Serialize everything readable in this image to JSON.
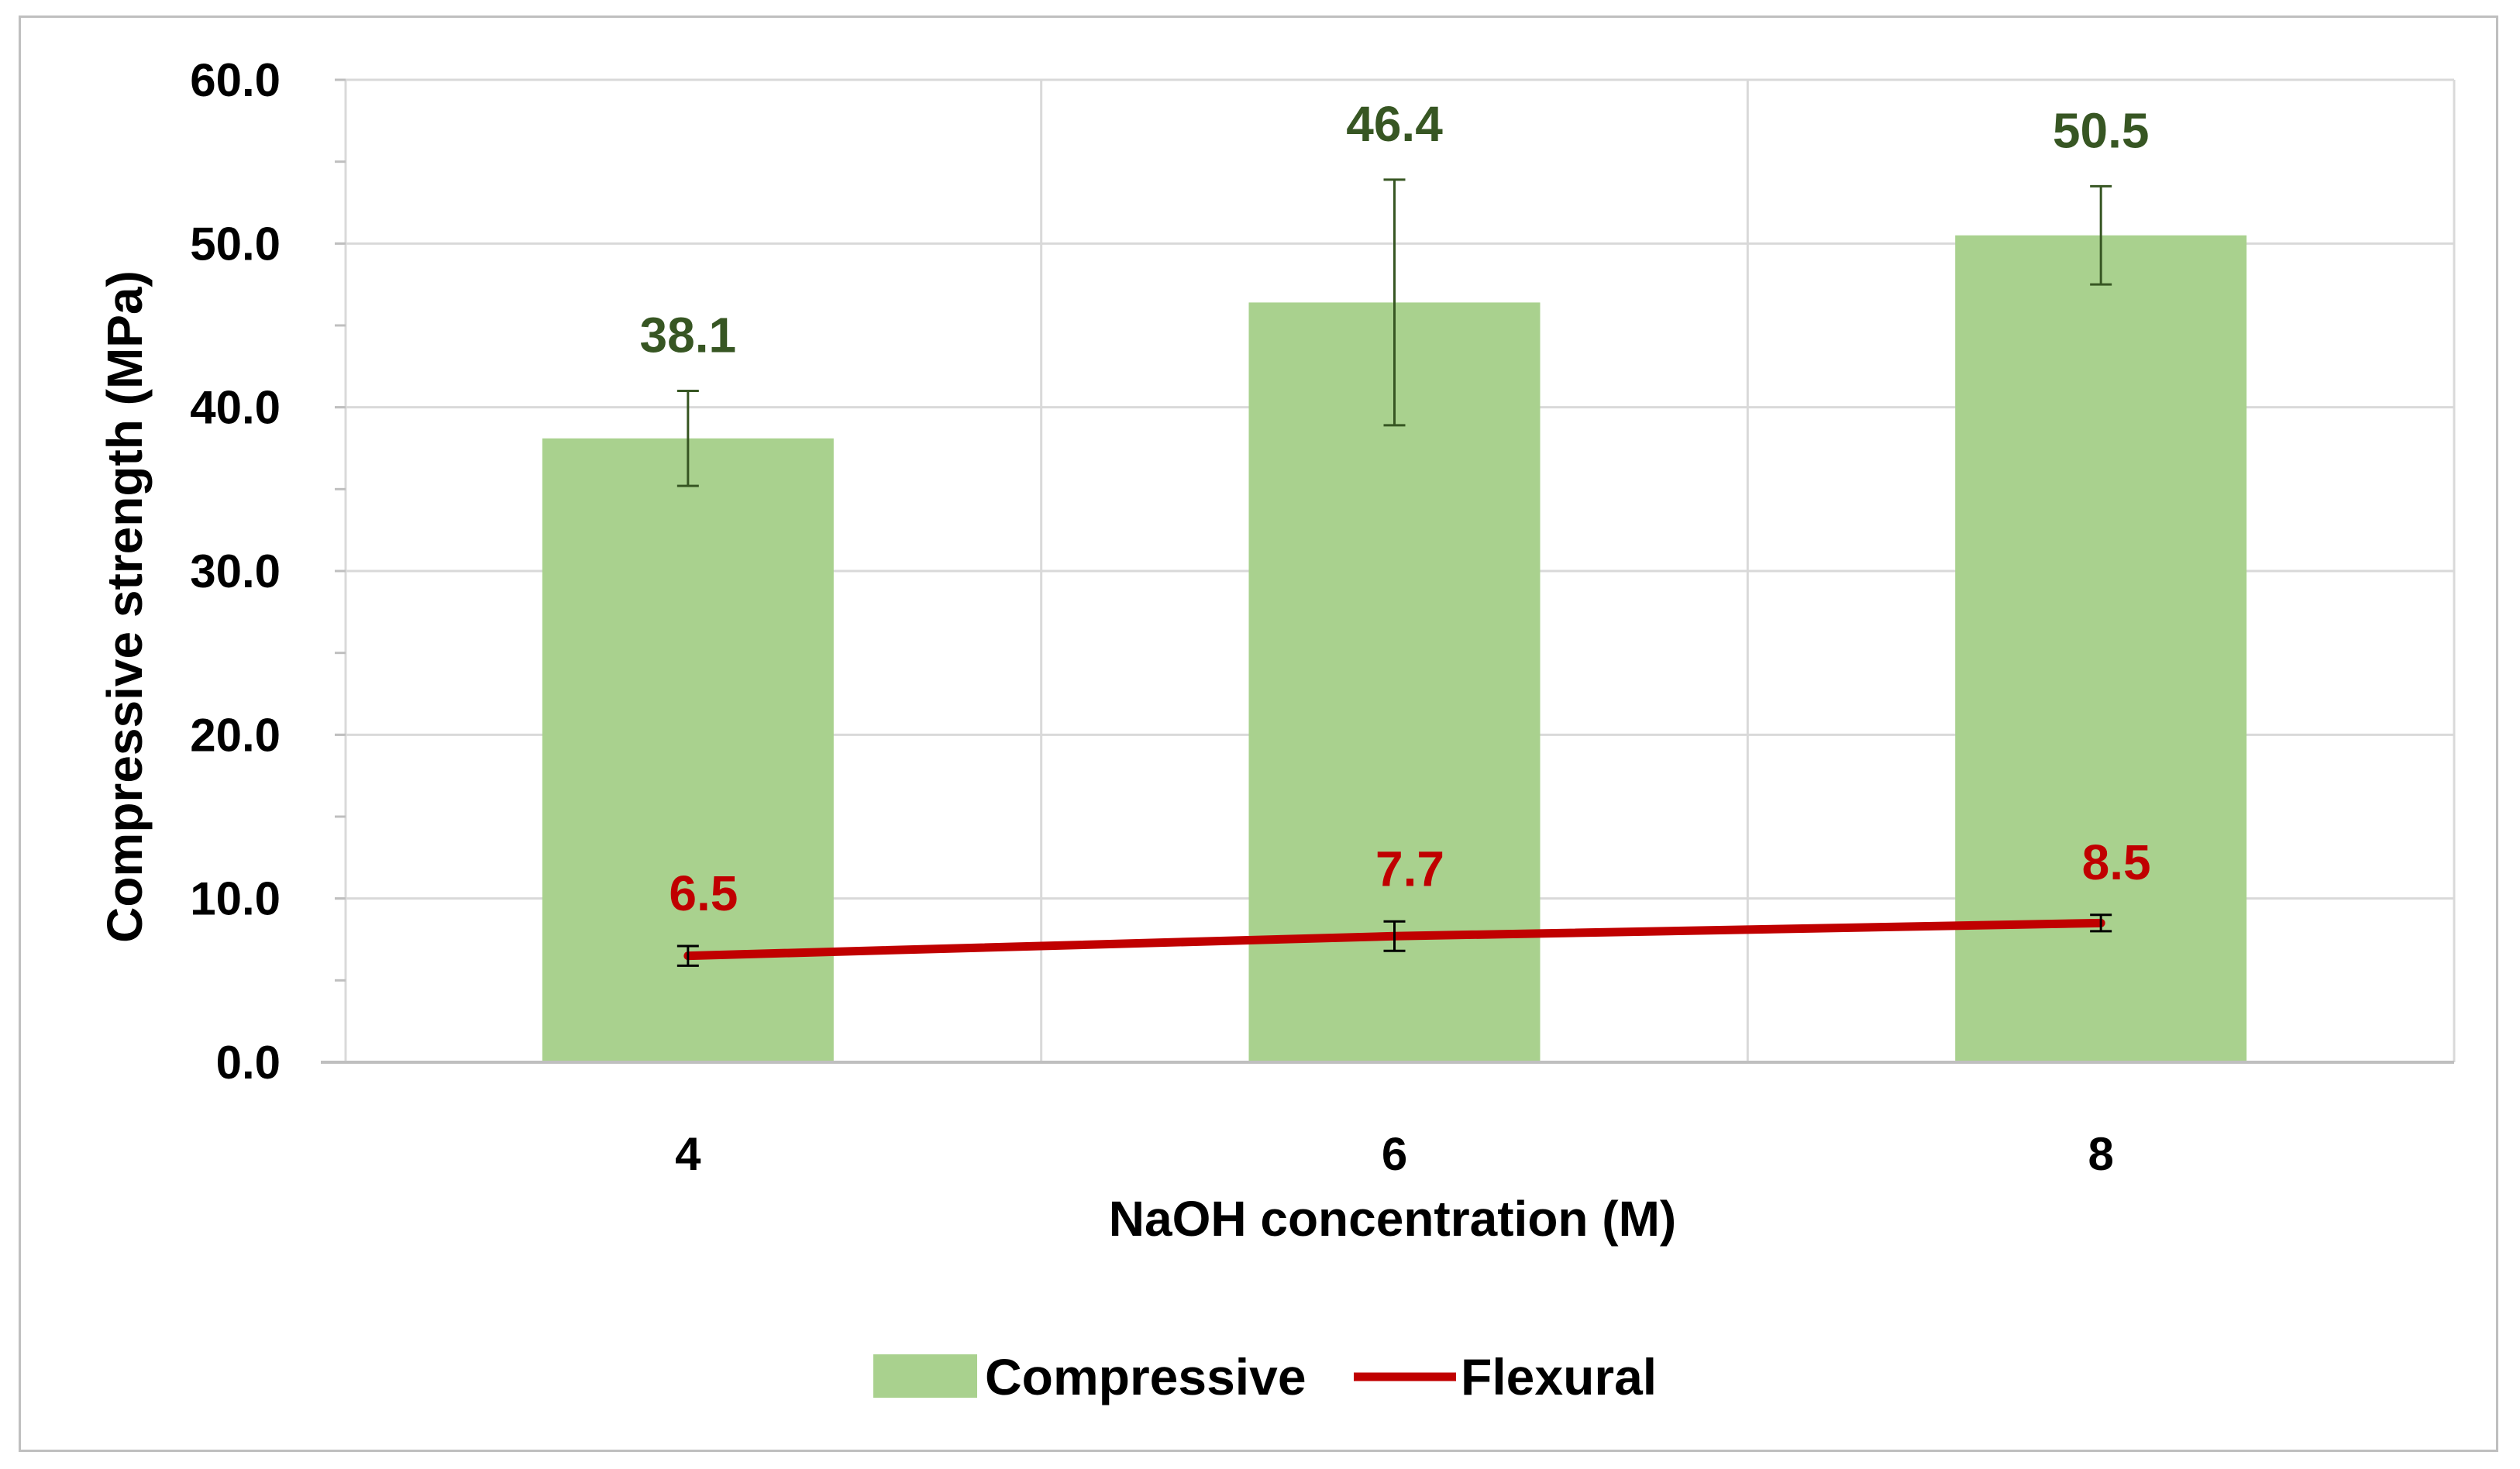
{
  "chart_data": {
    "type": "bar",
    "categories": [
      "4",
      "6",
      "8"
    ],
    "xlabel": "NaOH concentration (M)",
    "ylabel": "Compressive strength (MPa)",
    "ylim": [
      0,
      60
    ],
    "yticks": [
      "0.0",
      "10.0",
      "20.0",
      "30.0",
      "40.0",
      "50.0",
      "60.0"
    ],
    "grid": true,
    "legend_position": "bottom",
    "series": [
      {
        "name": "Compressive",
        "kind": "bar",
        "color": "#a9d18e",
        "label_color": "#375623",
        "values": [
          38.1,
          46.4,
          50.5
        ],
        "labels": [
          "38.1",
          "46.4",
          "50.5"
        ],
        "error": [
          2.9,
          7.5,
          3.0
        ]
      },
      {
        "name": "Flexural",
        "kind": "line",
        "color": "#c00000",
        "label_color": "#c00000",
        "values": [
          6.5,
          7.7,
          8.5
        ],
        "labels": [
          "6.5",
          "7.7",
          "8.5"
        ],
        "error": [
          0.6,
          0.9,
          0.5
        ]
      }
    ]
  }
}
